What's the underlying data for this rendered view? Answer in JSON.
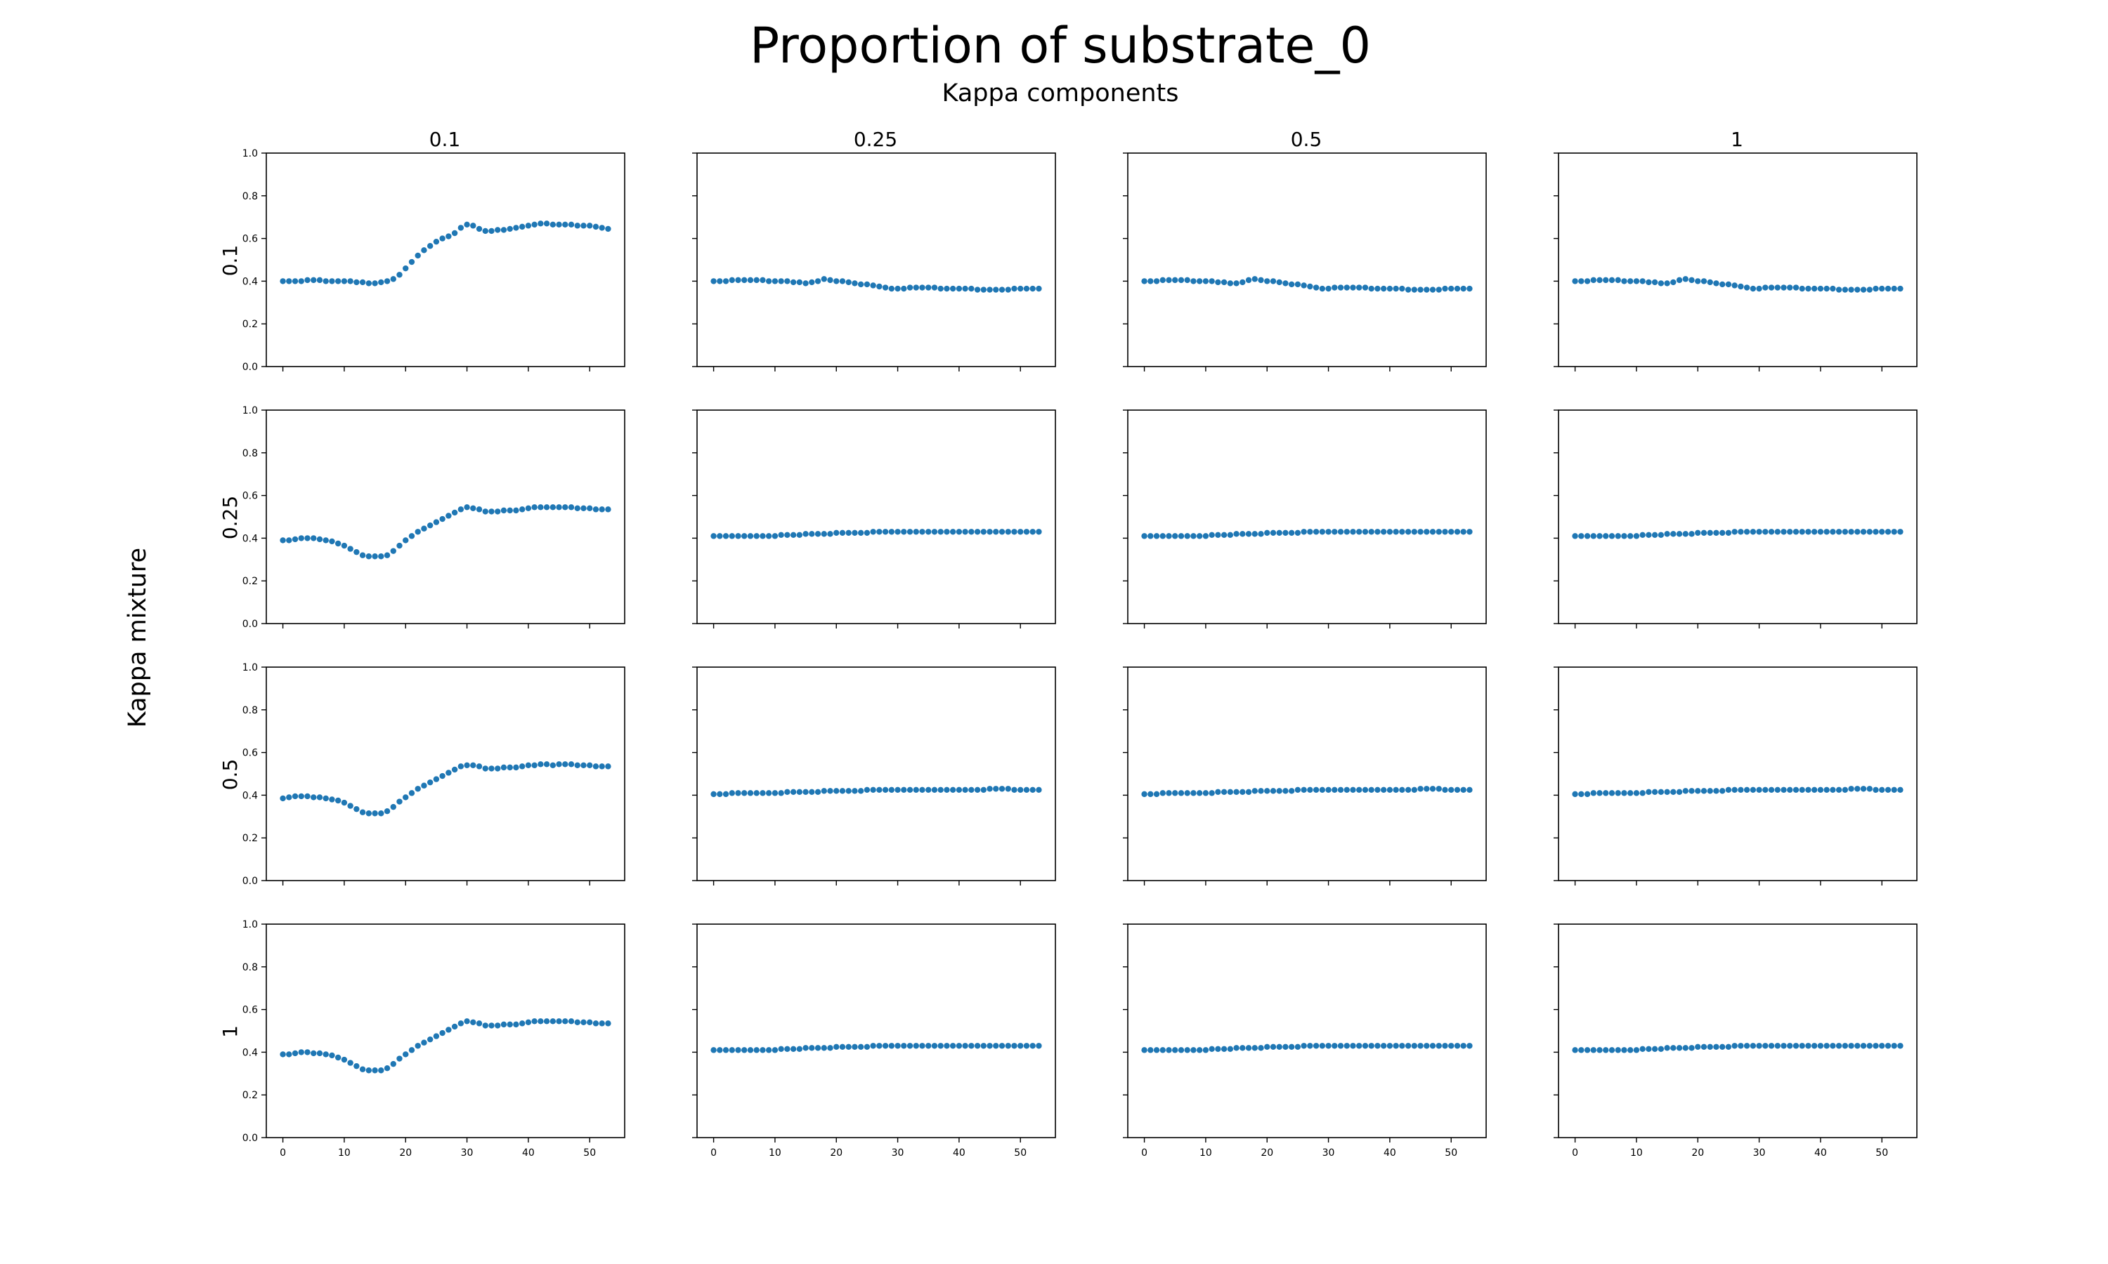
{
  "figure": {
    "title": "Proportion of substrate_0",
    "subtitle": "Kappa components",
    "row_axis_label": "Kappa mixture",
    "column_labels": [
      "0.1",
      "0.25",
      "0.5",
      "1"
    ],
    "row_labels": [
      "0.1",
      "0.25",
      "0.5",
      "1"
    ],
    "marker_color": "#1f77b4"
  },
  "chart_data": {
    "type": "scatter",
    "layout": "4x4 small multiples (rows: Kappa mixture, columns: Kappa components)",
    "xlim": [
      -2.7,
      55.7
    ],
    "ylim": [
      0,
      1.0
    ],
    "x_ticks": [
      0,
      10,
      20,
      30,
      40,
      50
    ],
    "y_ticks": [
      0.0,
      0.2,
      0.4,
      0.6,
      0.8,
      1.0
    ],
    "y_tick_labels": [
      "0.0",
      "0.2",
      "0.4",
      "0.6",
      "0.8",
      "1.0"
    ],
    "x_tick_labels": [
      "0",
      "10",
      "20",
      "30",
      "40",
      "50"
    ],
    "x": [
      0,
      1,
      2,
      3,
      4,
      5,
      6,
      7,
      8,
      9,
      10,
      11,
      12,
      13,
      14,
      15,
      16,
      17,
      18,
      19,
      20,
      21,
      22,
      23,
      24,
      25,
      26,
      27,
      28,
      29,
      30,
      31,
      32,
      33,
      34,
      35,
      36,
      37,
      38,
      39,
      40,
      41,
      42,
      43,
      44,
      45,
      46,
      47,
      48,
      49,
      50,
      51,
      52,
      53
    ],
    "panels": [
      {
        "row": 0,
        "col": 0,
        "y": [
          0.4,
          0.4,
          0.4,
          0.4,
          0.405,
          0.405,
          0.405,
          0.4,
          0.4,
          0.4,
          0.4,
          0.4,
          0.395,
          0.395,
          0.39,
          0.39,
          0.395,
          0.4,
          0.41,
          0.43,
          0.46,
          0.49,
          0.52,
          0.545,
          0.565,
          0.585,
          0.6,
          0.61,
          0.625,
          0.65,
          0.665,
          0.66,
          0.645,
          0.635,
          0.635,
          0.64,
          0.64,
          0.645,
          0.65,
          0.655,
          0.66,
          0.665,
          0.67,
          0.67,
          0.665,
          0.665,
          0.665,
          0.665,
          0.66,
          0.66,
          0.66,
          0.655,
          0.65,
          0.645
        ]
      },
      {
        "row": 0,
        "col": 1,
        "y": [
          0.4,
          0.4,
          0.4,
          0.405,
          0.405,
          0.405,
          0.405,
          0.405,
          0.405,
          0.4,
          0.4,
          0.4,
          0.4,
          0.395,
          0.395,
          0.39,
          0.395,
          0.4,
          0.41,
          0.405,
          0.4,
          0.4,
          0.395,
          0.39,
          0.385,
          0.385,
          0.38,
          0.375,
          0.37,
          0.365,
          0.365,
          0.365,
          0.37,
          0.37,
          0.37,
          0.37,
          0.37,
          0.365,
          0.365,
          0.365,
          0.365,
          0.365,
          0.365,
          0.36,
          0.36,
          0.36,
          0.36,
          0.36,
          0.36,
          0.365,
          0.365,
          0.365,
          0.365,
          0.365
        ]
      },
      {
        "row": 0,
        "col": 2,
        "y": [
          0.4,
          0.4,
          0.4,
          0.405,
          0.405,
          0.405,
          0.405,
          0.405,
          0.4,
          0.4,
          0.4,
          0.4,
          0.395,
          0.395,
          0.39,
          0.39,
          0.395,
          0.405,
          0.41,
          0.405,
          0.4,
          0.4,
          0.395,
          0.39,
          0.385,
          0.385,
          0.38,
          0.375,
          0.37,
          0.365,
          0.365,
          0.37,
          0.37,
          0.37,
          0.37,
          0.37,
          0.37,
          0.365,
          0.365,
          0.365,
          0.365,
          0.365,
          0.365,
          0.36,
          0.36,
          0.36,
          0.36,
          0.36,
          0.36,
          0.365,
          0.365,
          0.365,
          0.365,
          0.365
        ]
      },
      {
        "row": 0,
        "col": 3,
        "y": [
          0.4,
          0.4,
          0.4,
          0.405,
          0.405,
          0.405,
          0.405,
          0.405,
          0.4,
          0.4,
          0.4,
          0.4,
          0.395,
          0.395,
          0.39,
          0.39,
          0.395,
          0.405,
          0.41,
          0.405,
          0.4,
          0.4,
          0.395,
          0.39,
          0.385,
          0.385,
          0.38,
          0.375,
          0.37,
          0.365,
          0.365,
          0.37,
          0.37,
          0.37,
          0.37,
          0.37,
          0.37,
          0.365,
          0.365,
          0.365,
          0.365,
          0.365,
          0.365,
          0.36,
          0.36,
          0.36,
          0.36,
          0.36,
          0.36,
          0.365,
          0.365,
          0.365,
          0.365,
          0.365
        ]
      },
      {
        "row": 1,
        "col": 0,
        "y": [
          0.39,
          0.39,
          0.395,
          0.4,
          0.4,
          0.4,
          0.395,
          0.39,
          0.385,
          0.375,
          0.365,
          0.35,
          0.335,
          0.32,
          0.315,
          0.315,
          0.315,
          0.32,
          0.34,
          0.365,
          0.39,
          0.41,
          0.43,
          0.445,
          0.46,
          0.475,
          0.49,
          0.505,
          0.52,
          0.535,
          0.545,
          0.54,
          0.535,
          0.525,
          0.525,
          0.525,
          0.53,
          0.53,
          0.53,
          0.535,
          0.54,
          0.545,
          0.545,
          0.545,
          0.545,
          0.545,
          0.545,
          0.545,
          0.54,
          0.54,
          0.54,
          0.535,
          0.535,
          0.535
        ]
      },
      {
        "row": 1,
        "col": 1,
        "y": [
          0.41,
          0.41,
          0.41,
          0.41,
          0.41,
          0.41,
          0.41,
          0.41,
          0.41,
          0.41,
          0.41,
          0.415,
          0.415,
          0.415,
          0.415,
          0.42,
          0.42,
          0.42,
          0.42,
          0.42,
          0.425,
          0.425,
          0.425,
          0.425,
          0.425,
          0.425,
          0.43,
          0.43,
          0.43,
          0.43,
          0.43,
          0.43,
          0.43,
          0.43,
          0.43,
          0.43,
          0.43,
          0.43,
          0.43,
          0.43,
          0.43,
          0.43,
          0.43,
          0.43,
          0.43,
          0.43,
          0.43,
          0.43,
          0.43,
          0.43,
          0.43,
          0.43,
          0.43,
          0.43
        ]
      },
      {
        "row": 1,
        "col": 2,
        "y": [
          0.41,
          0.41,
          0.41,
          0.41,
          0.41,
          0.41,
          0.41,
          0.41,
          0.41,
          0.41,
          0.41,
          0.415,
          0.415,
          0.415,
          0.415,
          0.42,
          0.42,
          0.42,
          0.42,
          0.42,
          0.425,
          0.425,
          0.425,
          0.425,
          0.425,
          0.425,
          0.43,
          0.43,
          0.43,
          0.43,
          0.43,
          0.43,
          0.43,
          0.43,
          0.43,
          0.43,
          0.43,
          0.43,
          0.43,
          0.43,
          0.43,
          0.43,
          0.43,
          0.43,
          0.43,
          0.43,
          0.43,
          0.43,
          0.43,
          0.43,
          0.43,
          0.43,
          0.43,
          0.43
        ]
      },
      {
        "row": 1,
        "col": 3,
        "y": [
          0.41,
          0.41,
          0.41,
          0.41,
          0.41,
          0.41,
          0.41,
          0.41,
          0.41,
          0.41,
          0.41,
          0.415,
          0.415,
          0.415,
          0.415,
          0.42,
          0.42,
          0.42,
          0.42,
          0.42,
          0.425,
          0.425,
          0.425,
          0.425,
          0.425,
          0.425,
          0.43,
          0.43,
          0.43,
          0.43,
          0.43,
          0.43,
          0.43,
          0.43,
          0.43,
          0.43,
          0.43,
          0.43,
          0.43,
          0.43,
          0.43,
          0.43,
          0.43,
          0.43,
          0.43,
          0.43,
          0.43,
          0.43,
          0.43,
          0.43,
          0.43,
          0.43,
          0.43,
          0.43
        ]
      },
      {
        "row": 2,
        "col": 0,
        "y": [
          0.385,
          0.39,
          0.395,
          0.395,
          0.395,
          0.39,
          0.39,
          0.385,
          0.38,
          0.375,
          0.365,
          0.35,
          0.335,
          0.32,
          0.315,
          0.315,
          0.315,
          0.325,
          0.345,
          0.37,
          0.39,
          0.41,
          0.43,
          0.445,
          0.46,
          0.475,
          0.49,
          0.505,
          0.52,
          0.535,
          0.54,
          0.54,
          0.535,
          0.525,
          0.525,
          0.525,
          0.53,
          0.53,
          0.53,
          0.535,
          0.54,
          0.54,
          0.545,
          0.545,
          0.54,
          0.545,
          0.545,
          0.545,
          0.54,
          0.54,
          0.54,
          0.535,
          0.535,
          0.535
        ]
      },
      {
        "row": 2,
        "col": 1,
        "y": [
          0.405,
          0.405,
          0.405,
          0.41,
          0.41,
          0.41,
          0.41,
          0.41,
          0.41,
          0.41,
          0.41,
          0.41,
          0.415,
          0.415,
          0.415,
          0.415,
          0.415,
          0.415,
          0.42,
          0.42,
          0.42,
          0.42,
          0.42,
          0.42,
          0.42,
          0.425,
          0.425,
          0.425,
          0.425,
          0.425,
          0.425,
          0.425,
          0.425,
          0.425,
          0.425,
          0.425,
          0.425,
          0.425,
          0.425,
          0.425,
          0.425,
          0.425,
          0.425,
          0.425,
          0.425,
          0.43,
          0.43,
          0.43,
          0.43,
          0.425,
          0.425,
          0.425,
          0.425,
          0.425
        ]
      },
      {
        "row": 2,
        "col": 2,
        "y": [
          0.405,
          0.405,
          0.405,
          0.41,
          0.41,
          0.41,
          0.41,
          0.41,
          0.41,
          0.41,
          0.41,
          0.41,
          0.415,
          0.415,
          0.415,
          0.415,
          0.415,
          0.415,
          0.42,
          0.42,
          0.42,
          0.42,
          0.42,
          0.42,
          0.42,
          0.425,
          0.425,
          0.425,
          0.425,
          0.425,
          0.425,
          0.425,
          0.425,
          0.425,
          0.425,
          0.425,
          0.425,
          0.425,
          0.425,
          0.425,
          0.425,
          0.425,
          0.425,
          0.425,
          0.425,
          0.43,
          0.43,
          0.43,
          0.43,
          0.425,
          0.425,
          0.425,
          0.425,
          0.425
        ]
      },
      {
        "row": 2,
        "col": 3,
        "y": [
          0.405,
          0.405,
          0.405,
          0.41,
          0.41,
          0.41,
          0.41,
          0.41,
          0.41,
          0.41,
          0.41,
          0.41,
          0.415,
          0.415,
          0.415,
          0.415,
          0.415,
          0.415,
          0.42,
          0.42,
          0.42,
          0.42,
          0.42,
          0.42,
          0.42,
          0.425,
          0.425,
          0.425,
          0.425,
          0.425,
          0.425,
          0.425,
          0.425,
          0.425,
          0.425,
          0.425,
          0.425,
          0.425,
          0.425,
          0.425,
          0.425,
          0.425,
          0.425,
          0.425,
          0.425,
          0.43,
          0.43,
          0.43,
          0.43,
          0.425,
          0.425,
          0.425,
          0.425,
          0.425
        ]
      },
      {
        "row": 3,
        "col": 0,
        "y": [
          0.39,
          0.39,
          0.395,
          0.4,
          0.4,
          0.395,
          0.395,
          0.39,
          0.385,
          0.375,
          0.365,
          0.35,
          0.335,
          0.32,
          0.315,
          0.315,
          0.315,
          0.325,
          0.345,
          0.37,
          0.39,
          0.41,
          0.43,
          0.445,
          0.46,
          0.475,
          0.49,
          0.505,
          0.52,
          0.535,
          0.545,
          0.54,
          0.535,
          0.525,
          0.525,
          0.525,
          0.53,
          0.53,
          0.53,
          0.535,
          0.54,
          0.545,
          0.545,
          0.545,
          0.545,
          0.545,
          0.545,
          0.545,
          0.54,
          0.54,
          0.54,
          0.535,
          0.535,
          0.535
        ]
      },
      {
        "row": 3,
        "col": 1,
        "y": [
          0.41,
          0.41,
          0.41,
          0.41,
          0.41,
          0.41,
          0.41,
          0.41,
          0.41,
          0.41,
          0.41,
          0.415,
          0.415,
          0.415,
          0.415,
          0.42,
          0.42,
          0.42,
          0.42,
          0.42,
          0.425,
          0.425,
          0.425,
          0.425,
          0.425,
          0.425,
          0.43,
          0.43,
          0.43,
          0.43,
          0.43,
          0.43,
          0.43,
          0.43,
          0.43,
          0.43,
          0.43,
          0.43,
          0.43,
          0.43,
          0.43,
          0.43,
          0.43,
          0.43,
          0.43,
          0.43,
          0.43,
          0.43,
          0.43,
          0.43,
          0.43,
          0.43,
          0.43,
          0.43
        ]
      },
      {
        "row": 3,
        "col": 2,
        "y": [
          0.41,
          0.41,
          0.41,
          0.41,
          0.41,
          0.41,
          0.41,
          0.41,
          0.41,
          0.41,
          0.41,
          0.415,
          0.415,
          0.415,
          0.415,
          0.42,
          0.42,
          0.42,
          0.42,
          0.42,
          0.425,
          0.425,
          0.425,
          0.425,
          0.425,
          0.425,
          0.43,
          0.43,
          0.43,
          0.43,
          0.43,
          0.43,
          0.43,
          0.43,
          0.43,
          0.43,
          0.43,
          0.43,
          0.43,
          0.43,
          0.43,
          0.43,
          0.43,
          0.43,
          0.43,
          0.43,
          0.43,
          0.43,
          0.43,
          0.43,
          0.43,
          0.43,
          0.43,
          0.43
        ]
      },
      {
        "row": 3,
        "col": 3,
        "y": [
          0.41,
          0.41,
          0.41,
          0.41,
          0.41,
          0.41,
          0.41,
          0.41,
          0.41,
          0.41,
          0.41,
          0.415,
          0.415,
          0.415,
          0.415,
          0.42,
          0.42,
          0.42,
          0.42,
          0.42,
          0.425,
          0.425,
          0.425,
          0.425,
          0.425,
          0.425,
          0.43,
          0.43,
          0.43,
          0.43,
          0.43,
          0.43,
          0.43,
          0.43,
          0.43,
          0.43,
          0.43,
          0.43,
          0.43,
          0.43,
          0.43,
          0.43,
          0.43,
          0.43,
          0.43,
          0.43,
          0.43,
          0.43,
          0.43,
          0.43,
          0.43,
          0.43,
          0.43,
          0.43
        ]
      }
    ]
  }
}
